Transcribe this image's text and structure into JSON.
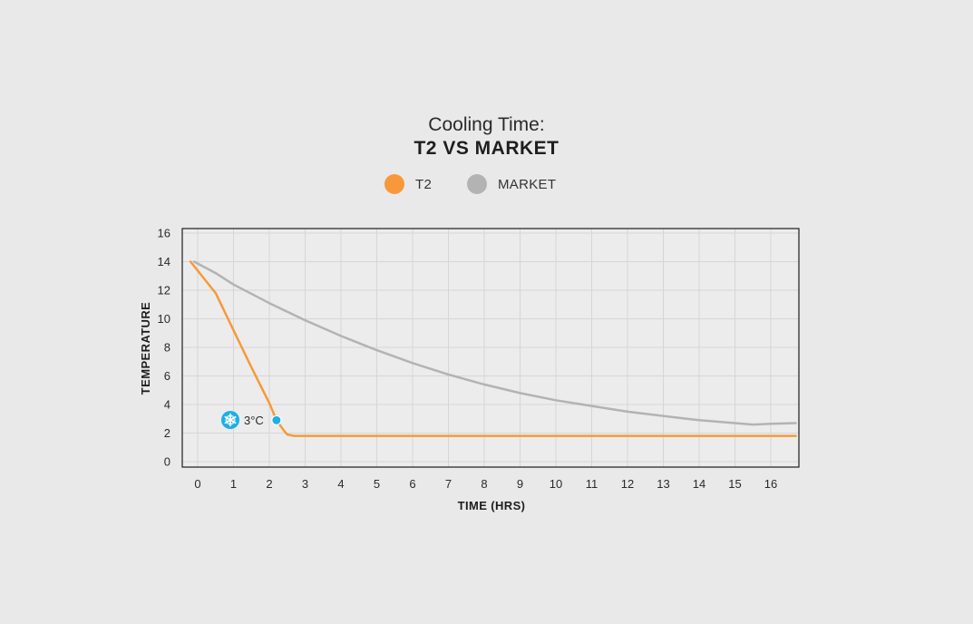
{
  "chart_data": {
    "type": "line",
    "title_line1": "Cooling Time:",
    "title_line2": "T2 VS MARKET",
    "xlabel": "TIME (HRS)",
    "ylabel": "TEMPERATURE",
    "xlim": [
      -0.4,
      16.7
    ],
    "ylim": [
      -0.4,
      16.4
    ],
    "x_ticks": [
      0,
      1,
      2,
      3,
      4,
      5,
      6,
      7,
      8,
      9,
      10,
      11,
      12,
      13,
      14,
      15,
      16
    ],
    "y_ticks": [
      0,
      2,
      4,
      6,
      8,
      10,
      12,
      14,
      16
    ],
    "grid": true,
    "legend_position": "top-center",
    "series": [
      {
        "name": "T2",
        "color": "#f7993a",
        "x": [
          -0.2,
          0.5,
          1.0,
          1.5,
          2.0,
          2.2,
          2.4,
          2.5,
          2.7,
          2.9,
          3.5,
          5,
          8,
          12,
          16.7
        ],
        "y": [
          14.0,
          11.8,
          9.2,
          6.6,
          4.1,
          2.9,
          2.2,
          1.9,
          1.8,
          1.8,
          1.8,
          1.8,
          1.8,
          1.8,
          1.8
        ]
      },
      {
        "name": "MARKET",
        "color": "#b3b3b3",
        "x": [
          -0.1,
          0.5,
          1,
          2,
          3,
          4,
          5,
          6,
          7,
          8,
          9,
          10,
          11,
          12,
          13,
          14,
          15,
          15.5,
          16,
          16.7
        ],
        "y": [
          14.0,
          13.2,
          12.4,
          11.1,
          9.9,
          8.8,
          7.8,
          6.9,
          6.1,
          5.4,
          4.8,
          4.3,
          3.9,
          3.5,
          3.2,
          2.9,
          2.7,
          2.6,
          2.65,
          2.7
        ]
      }
    ],
    "annotation": {
      "label": "3°C",
      "x": 2.2,
      "y": 2.9,
      "marker_color": "#1eaee6",
      "icon": "snowflake-icon"
    }
  }
}
